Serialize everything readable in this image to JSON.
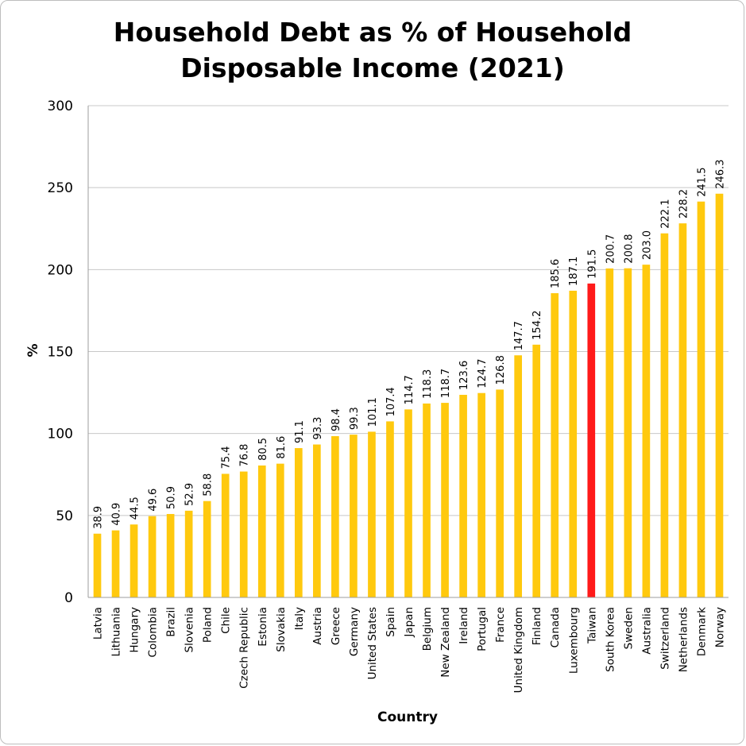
{
  "chart_data": {
    "type": "bar",
    "title_lines": [
      "Household Debt as % of Household",
      "Disposable Income (2021)"
    ],
    "xlabel": "Country",
    "ylabel": "%",
    "ylim": [
      0,
      300
    ],
    "yticks": [
      0,
      50,
      100,
      150,
      200,
      250,
      300
    ],
    "grid": true,
    "legend": "none",
    "colors": {
      "default": "#FFC90E",
      "highlight": "#FF1A1A",
      "grid": "#C8C8C8",
      "axis": "#9E9E9E"
    },
    "highlight_category": "Taiwan",
    "categories": [
      "Latvia",
      "Lithuania",
      "Hungary",
      "Colombia",
      "Brazil",
      "Slovenia",
      "Poland",
      "Chile",
      "Czech Republic",
      "Estonia",
      "Slovakia",
      "Italy",
      "Austria",
      "Greece",
      "Germany",
      "United States",
      "Spain",
      "Japan",
      "Belgium",
      "New Zealand",
      "Ireland",
      "Portugal",
      "France",
      "United Kingdom",
      "Finland",
      "Canada",
      "Luxembourg",
      "Taiwan",
      "South Korea",
      "Sweden",
      "Australia",
      "Switzerland",
      "Netherlands",
      "Denmark",
      "Norway"
    ],
    "values": [
      38.9,
      40.9,
      44.5,
      49.6,
      50.9,
      52.9,
      58.8,
      75.4,
      76.8,
      80.5,
      81.6,
      91.1,
      93.3,
      98.4,
      99.3,
      101.1,
      107.4,
      114.7,
      118.3,
      118.7,
      123.6,
      124.7,
      126.8,
      147.7,
      154.2,
      185.6,
      187.1,
      191.5,
      200.7,
      200.8,
      203.0,
      222.1,
      228.2,
      241.5,
      246.3
    ],
    "value_labels": [
      "38.9",
      "40.9",
      "44.5",
      "49.6",
      "50.9",
      "52.9",
      "58.8",
      "75.4",
      "76.8",
      "80.5",
      "81.6",
      "91.1",
      "93.3",
      "98.4",
      "99.3",
      "101.1",
      "107.4",
      "114.7",
      "118.3",
      "118.7",
      "123.6",
      "124.7",
      "126.8",
      "147.7",
      "154.2",
      "185.6",
      "187.1",
      "191.5",
      "200.7",
      "200.8",
      "203.0",
      "222.1",
      "228.2",
      "241.5",
      "246.3"
    ]
  }
}
